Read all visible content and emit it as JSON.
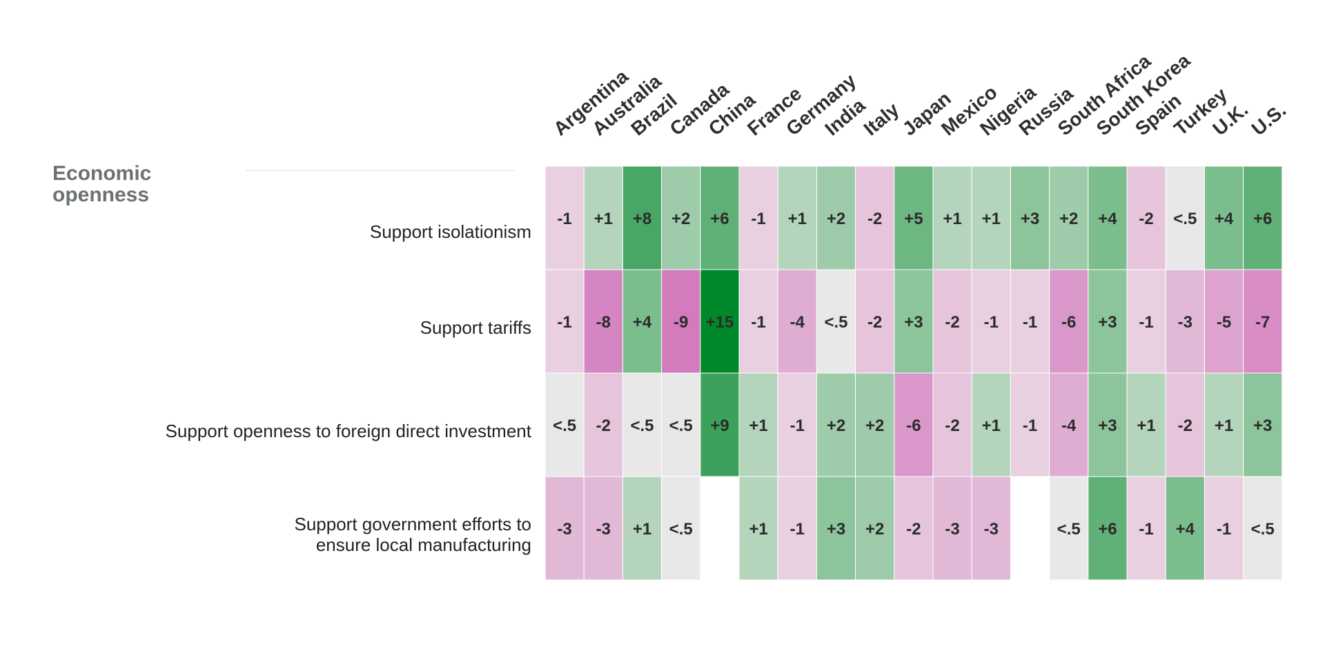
{
  "chart_data": {
    "type": "heatmap",
    "section_title": "Economic openness",
    "columns": [
      "Argentina",
      "Australia",
      "Brazil",
      "Canada",
      "China",
      "France",
      "Germany",
      "India",
      "Italy",
      "Japan",
      "Mexico",
      "Nigeria",
      "Russia",
      "South Africa",
      "South Korea",
      "Spain",
      "Turkey",
      "U.K.",
      "U.S."
    ],
    "rows": [
      {
        "label": "Support isolationism",
        "values": [
          -1,
          1,
          8,
          2,
          6,
          -1,
          1,
          2,
          -2,
          5,
          1,
          1,
          3,
          2,
          4,
          -2,
          0,
          4,
          6
        ],
        "labels": [
          "-1",
          "+1",
          "+8",
          "+2",
          "+6",
          "-1",
          "+1",
          "+2",
          "-2",
          "+5",
          "+1",
          "+1",
          "+3",
          "+2",
          "+4",
          "-2",
          "<.5",
          "+4",
          "+6"
        ]
      },
      {
        "label": "Support tariffs",
        "values": [
          -1,
          -8,
          4,
          -9,
          15,
          -1,
          -4,
          0,
          -2,
          3,
          -2,
          -1,
          -1,
          -6,
          3,
          -1,
          -3,
          -5,
          -7
        ],
        "labels": [
          "-1",
          "-8",
          "+4",
          "-9",
          "+15",
          "-1",
          "-4",
          "<.5",
          "-2",
          "+3",
          "-2",
          "-1",
          "-1",
          "-6",
          "+3",
          "-1",
          "-3",
          "-5",
          "-7"
        ]
      },
      {
        "label": "Support openness to foreign direct investment",
        "values": [
          0,
          -2,
          0,
          0,
          9,
          1,
          -1,
          2,
          2,
          -6,
          -2,
          1,
          -1,
          -4,
          3,
          1,
          -2,
          1,
          3
        ],
        "labels": [
          "<.5",
          "-2",
          "<.5",
          "<.5",
          "+9",
          "+1",
          "-1",
          "+2",
          "+2",
          "-6",
          "-2",
          "+1",
          "-1",
          "-4",
          "+3",
          "+1",
          "-2",
          "+1",
          "+3"
        ]
      },
      {
        "label": "Support government efforts to ensure local manufacturing",
        "label_lines": [
          "Support government efforts to",
          "ensure local manufacturing"
        ],
        "values": [
          -3,
          -3,
          1,
          0,
          null,
          1,
          -1,
          3,
          2,
          -2,
          -3,
          -3,
          null,
          0,
          6,
          -1,
          4,
          -1,
          0
        ],
        "labels": [
          "-3",
          "-3",
          "+1",
          "<.5",
          "",
          "+1",
          "-1",
          "+3",
          "+2",
          "-2",
          "-3",
          "-3",
          "",
          "<.5",
          "+6",
          "-1",
          "+4",
          "-1",
          "<.5"
        ]
      }
    ],
    "colors": {
      "positive_max": "#00892a",
      "negative_max": "#d37bbd",
      "neutral": "#e8e8e8",
      "text": "#2b2b2b",
      "row_label": "#222222"
    }
  }
}
